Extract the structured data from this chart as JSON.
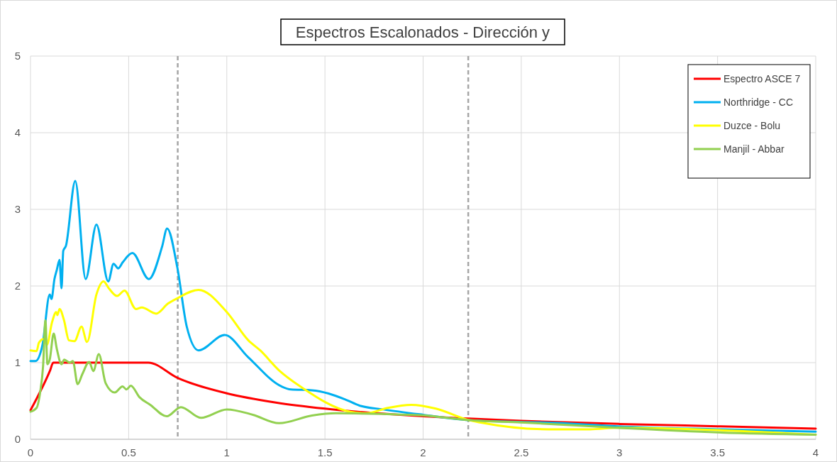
{
  "chart_data": {
    "type": "line",
    "title": "Espectros Escalonados - Dirección y",
    "xlim": [
      0,
      4
    ],
    "ylim": [
      0,
      5
    ],
    "xticks": [
      0,
      0.5,
      1,
      1.5,
      2,
      2.5,
      3,
      3.5,
      4
    ],
    "yticks": [
      0,
      1,
      2,
      3,
      4,
      5
    ],
    "grid": true,
    "legend": "top right",
    "line_style": "solid",
    "marker": "none",
    "ref_lines": [
      {
        "axis": "x",
        "value": 0.75,
        "color": "#a6a6a6",
        "line_style": "dashed"
      },
      {
        "axis": "x",
        "value": 2.23,
        "color": "#a6a6a6",
        "line_style": "dashed"
      }
    ],
    "series": [
      {
        "name": "Espectro ASCE 7",
        "color": "#ff0000",
        "x": [
          0,
          0.1,
          0.116,
          0.6,
          0.75,
          1,
          1.25,
          1.5,
          2,
          2.23,
          2.5,
          3,
          3.5,
          4
        ],
        "values": [
          0.38,
          0.9,
          1,
          1,
          0.8,
          0.6,
          0.48,
          0.4,
          0.3,
          0.27,
          0.24,
          0.2,
          0.17,
          0.14
        ]
      },
      {
        "name": "Northridge - CC",
        "color": "#00b0f0",
        "x": [
          0,
          0.025,
          0.061,
          0.098,
          0.107,
          0.122,
          0.134,
          0.148,
          0.158,
          0.167,
          0.18,
          0.228,
          0.281,
          0.336,
          0.396,
          0.423,
          0.447,
          0.47,
          0.519,
          0.603,
          0.67,
          0.696,
          0.748,
          0.796,
          0.856,
          0.989,
          1.109,
          1.278,
          1.326,
          1.434,
          1.603,
          1.676,
          1.796,
          2.0,
          2.233,
          2.71,
          2.99,
          3.5,
          4
        ],
        "values": [
          1.02,
          1.02,
          1.23,
          1.89,
          1.83,
          2.09,
          2.21,
          2.34,
          1.97,
          2.46,
          2.52,
          3.37,
          2.09,
          2.8,
          2.06,
          2.29,
          2.23,
          2.31,
          2.43,
          2.09,
          2.51,
          2.75,
          2.24,
          1.47,
          1.16,
          1.36,
          1.07,
          0.69,
          0.65,
          0.64,
          0.52,
          0.44,
          0.39,
          0.32,
          0.25,
          0.21,
          0.17,
          0.13,
          0.1
        ]
      },
      {
        "name": "Duzce - Bolu",
        "color": "#ffff00",
        "x": [
          0,
          0.031,
          0.043,
          0.068,
          0.083,
          0.11,
          0.131,
          0.137,
          0.148,
          0.17,
          0.196,
          0.224,
          0.26,
          0.288,
          0.336,
          0.372,
          0.399,
          0.441,
          0.479,
          0.537,
          0.567,
          0.64,
          0.7,
          0.748,
          0.856,
          1.0,
          1.11,
          1.17,
          1.266,
          1.386,
          1.627,
          1.712,
          1.82,
          1.94,
          2.065,
          2.233,
          2.29,
          2.64,
          2.85,
          2.99,
          3.5,
          4
        ],
        "values": [
          1.16,
          1.15,
          1.26,
          1.31,
          1.23,
          1.53,
          1.66,
          1.62,
          1.7,
          1.56,
          1.29,
          1.28,
          1.47,
          1.27,
          1.89,
          2.06,
          1.97,
          1.87,
          1.94,
          1.7,
          1.72,
          1.64,
          1.77,
          1.84,
          1.95,
          1.66,
          1.29,
          1.16,
          0.9,
          0.67,
          0.36,
          0.34,
          0.41,
          0.45,
          0.4,
          0.25,
          0.22,
          0.13,
          0.13,
          0.15,
          0.12,
          0.06
        ]
      },
      {
        "name": "Manjil - Abbar",
        "color": "#92d050",
        "x": [
          0,
          0.031,
          0.049,
          0.064,
          0.076,
          0.086,
          0.098,
          0.118,
          0.134,
          0.158,
          0.172,
          0.2,
          0.216,
          0.24,
          0.264,
          0.299,
          0.32,
          0.348,
          0.383,
          0.429,
          0.469,
          0.489,
          0.511,
          0.555,
          0.61,
          0.694,
          0.766,
          0.868,
          1.0,
          1.133,
          1.266,
          1.434,
          1.555,
          1.796,
          2.01,
          2.233,
          2.5,
          2.99,
          3.5,
          4
        ],
        "values": [
          0.36,
          0.41,
          0.61,
          0.95,
          1.55,
          0.98,
          1.04,
          1.38,
          1.18,
          0.98,
          1.04,
          1.0,
          1.02,
          0.72,
          0.85,
          1.01,
          0.89,
          1.11,
          0.73,
          0.61,
          0.69,
          0.65,
          0.7,
          0.55,
          0.45,
          0.3,
          0.42,
          0.28,
          0.39,
          0.32,
          0.21,
          0.31,
          0.34,
          0.33,
          0.31,
          0.25,
          0.22,
          0.15,
          0.09,
          0.06
        ]
      }
    ]
  }
}
